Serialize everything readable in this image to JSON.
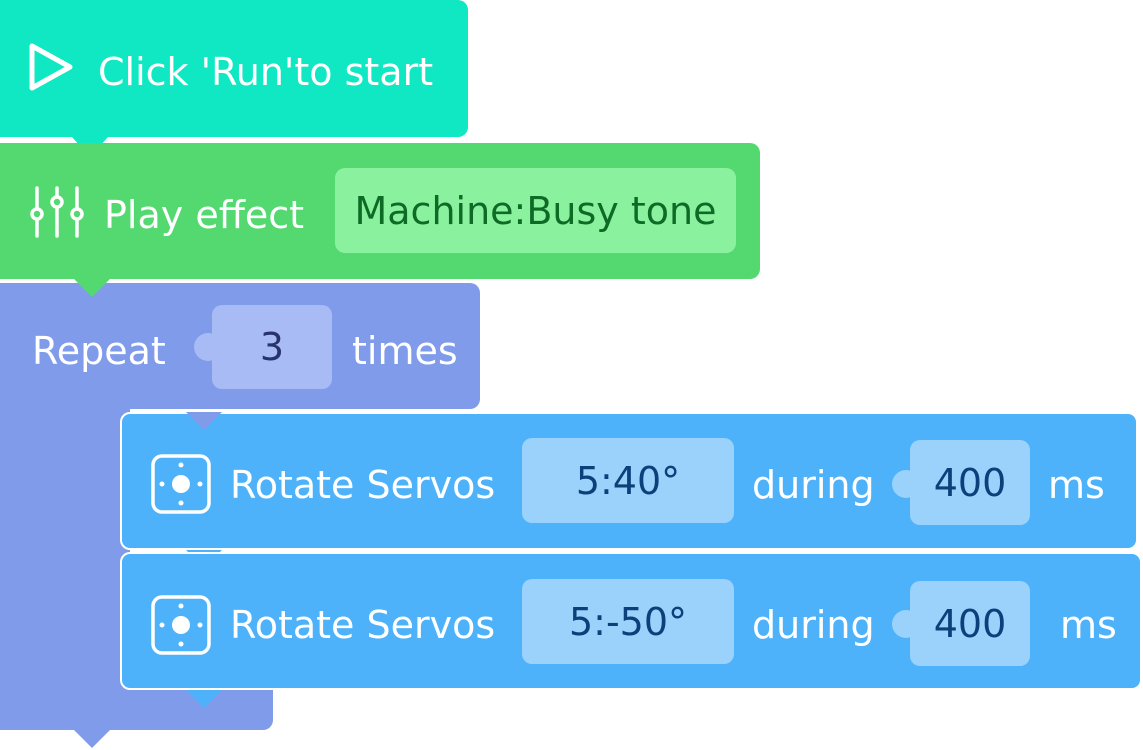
{
  "start_block": {
    "label": "Click 'Run'to start",
    "color": "#10E8C4",
    "icon": "play-icon"
  },
  "effect_block": {
    "label": "Play effect",
    "value": "Machine:Busy tone",
    "color": "#54D971",
    "value_bg": "#8AF29E",
    "value_color": "#0E6B25",
    "icon": "sliders-icon"
  },
  "repeat_block": {
    "label": "Repeat",
    "count": "3",
    "suffix": "times",
    "color": "#7F9BEA",
    "slot_bg": "#A9BBF5",
    "slot_color": "#27336B"
  },
  "servo_blocks": [
    {
      "label": "Rotate Servos",
      "angle": "5:40°",
      "during": "during",
      "duration": "400",
      "unit": "ms",
      "icon": "servo-icon"
    },
    {
      "label": "Rotate Servos",
      "angle": "5:-50°",
      "during": "during",
      "duration": "400",
      "unit": "ms",
      "icon": "servo-icon"
    }
  ],
  "servo_style": {
    "color": "#4DB2FA",
    "slot_bg": "#9AD2FC",
    "slot_color": "#0D3F7A"
  }
}
